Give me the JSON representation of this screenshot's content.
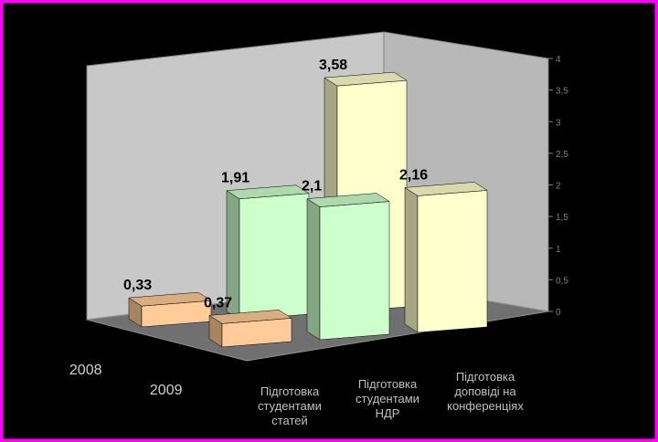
{
  "chart_data": {
    "type": "bar3d",
    "categories": [
      "Підготовка студентами статей",
      "Підготовка студентами НДР",
      "Підготовка доповіді на конференціях"
    ],
    "colors": [
      "#ffcc99",
      "#ccffcc",
      "#ffffcc"
    ],
    "series": [
      {
        "name": "2008",
        "values": [
          0.33,
          1.91,
          3.58
        ],
        "value_labels": [
          "0,33",
          "1,91",
          "3,58"
        ]
      },
      {
        "name": "2009",
        "values": [
          0.37,
          2.1,
          2.16
        ],
        "value_labels": [
          "0,37",
          "2,1",
          "2,16"
        ]
      }
    ],
    "ylim": [
      0,
      4
    ],
    "yticks": [
      0,
      {
        "value": 0.5,
        "label": "0,5"
      },
      1,
      {
        "value": 1.5,
        "label": "1,5"
      },
      2,
      {
        "value": 2.5,
        "label": "2,5"
      },
      3,
      {
        "value": 3.5,
        "label": "3,5"
      },
      4
    ],
    "grid": false
  }
}
